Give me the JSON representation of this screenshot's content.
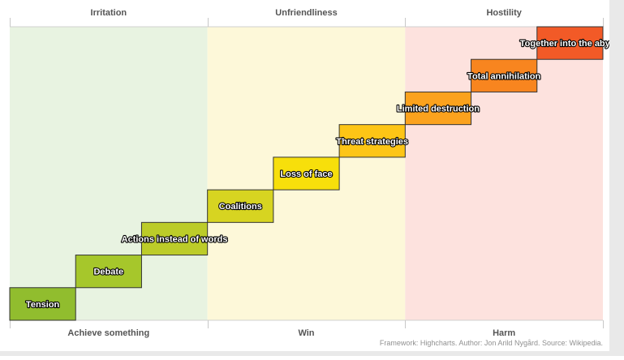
{
  "chart_data": {
    "type": "bar",
    "top_categories": [
      "Irritation",
      "Unfriendliness",
      "Hostility"
    ],
    "bottom_categories": [
      "Achieve something",
      "Win",
      "Harm"
    ],
    "x_range": [
      0,
      9
    ],
    "y_range": [
      0,
      9
    ],
    "zone_colors": [
      "#e8f3e1",
      "#fdf8d9",
      "#fde2de"
    ],
    "steps": [
      {
        "label": "Tension",
        "color": "#91bd2e"
      },
      {
        "label": "Debate",
        "color": "#a6c72b"
      },
      {
        "label": "Actions instead of words",
        "color": "#bccc29"
      },
      {
        "label": "Coalitions",
        "color": "#d7d421"
      },
      {
        "label": "Loss of face",
        "color": "#f7df0b"
      },
      {
        "label": "Threat strategies",
        "color": "#fdc516"
      },
      {
        "label": "Limited destruction",
        "color": "#fba21d"
      },
      {
        "label": "Total annihilation",
        "color": "#f8851f"
      },
      {
        "label": "Together into the abyss",
        "color": "#f25a27"
      }
    ]
  },
  "credits": "Framework: Highcharts. Author: Jon Arild Nygård. Source: Wikipedia."
}
